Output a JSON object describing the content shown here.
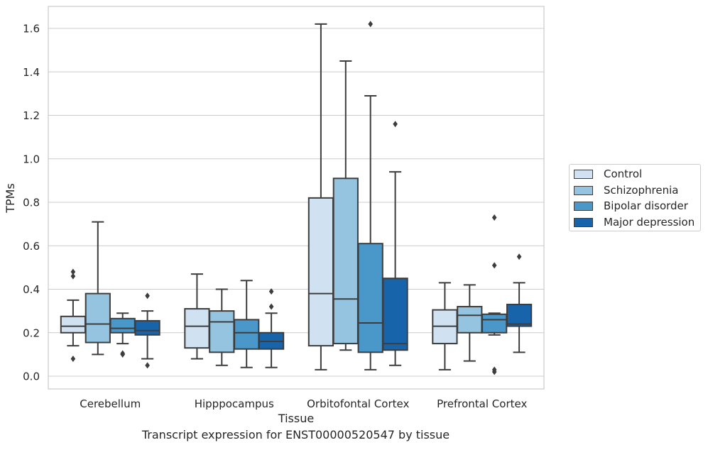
{
  "caption": "Transcript expression for ENST00000520547 by tissue",
  "chart_data": {
    "type": "box",
    "xlabel": "Tissue",
    "ylabel": "TPMs",
    "ylim": [
      -0.06,
      1.7
    ],
    "yticks": [
      0.0,
      0.2,
      0.4,
      0.6,
      0.8,
      1.0,
      1.2,
      1.4,
      1.6
    ],
    "ytick_labels": [
      "0.0",
      "0.2",
      "0.4",
      "0.6",
      "0.8",
      "1.0",
      "1.2",
      "1.4",
      "1.6"
    ],
    "grid": true,
    "legend_position": "right",
    "categories": [
      "Cerebellum",
      "Hipppocampus",
      "Orbitofontal Cortex",
      "Prefrontal Cortex"
    ],
    "series": [
      {
        "name": "Control",
        "color": "#d0e1f2",
        "boxes": [
          {
            "whislo": 0.14,
            "q1": 0.2,
            "med": 0.23,
            "q3": 0.275,
            "whishi": 0.35,
            "fliers": [
              0.08,
              0.46,
              0.48
            ]
          },
          {
            "whislo": 0.08,
            "q1": 0.13,
            "med": 0.23,
            "q3": 0.31,
            "whishi": 0.47,
            "fliers": []
          },
          {
            "whislo": 0.03,
            "q1": 0.14,
            "med": 0.38,
            "q3": 0.82,
            "whishi": 1.62,
            "fliers": []
          },
          {
            "whislo": 0.03,
            "q1": 0.15,
            "med": 0.23,
            "q3": 0.305,
            "whishi": 0.43,
            "fliers": []
          }
        ]
      },
      {
        "name": "Schizophrenia",
        "color": "#94c4df",
        "boxes": [
          {
            "whislo": 0.1,
            "q1": 0.155,
            "med": 0.24,
            "q3": 0.38,
            "whishi": 0.71,
            "fliers": []
          },
          {
            "whislo": 0.05,
            "q1": 0.11,
            "med": 0.25,
            "q3": 0.3,
            "whishi": 0.4,
            "fliers": []
          },
          {
            "whislo": 0.12,
            "q1": 0.15,
            "med": 0.355,
            "q3": 0.91,
            "whishi": 1.45,
            "fliers": []
          },
          {
            "whislo": 0.07,
            "q1": 0.2,
            "med": 0.28,
            "q3": 0.32,
            "whishi": 0.42,
            "fliers": []
          }
        ]
      },
      {
        "name": "Bipolar disorder",
        "color": "#4a98c9",
        "boxes": [
          {
            "whislo": 0.15,
            "q1": 0.2,
            "med": 0.22,
            "q3": 0.265,
            "whishi": 0.29,
            "fliers": [
              0.1,
              0.105
            ]
          },
          {
            "whislo": 0.04,
            "q1": 0.125,
            "med": 0.2,
            "q3": 0.26,
            "whishi": 0.44,
            "fliers": []
          },
          {
            "whislo": 0.03,
            "q1": 0.11,
            "med": 0.245,
            "q3": 0.61,
            "whishi": 1.29,
            "fliers": [
              1.62
            ]
          },
          {
            "whislo": 0.19,
            "q1": 0.2,
            "med": 0.26,
            "q3": 0.285,
            "whishi": 0.29,
            "fliers": [
              0.02,
              0.03,
              0.51,
              0.73
            ]
          }
        ]
      },
      {
        "name": "Major depression",
        "color": "#1764ab",
        "boxes": [
          {
            "whislo": 0.08,
            "q1": 0.19,
            "med": 0.21,
            "q3": 0.255,
            "whishi": 0.3,
            "fliers": [
              0.05,
              0.37
            ]
          },
          {
            "whislo": 0.04,
            "q1": 0.125,
            "med": 0.16,
            "q3": 0.2,
            "whishi": 0.29,
            "fliers": [
              0.32,
              0.39
            ]
          },
          {
            "whislo": 0.05,
            "q1": 0.12,
            "med": 0.15,
            "q3": 0.45,
            "whishi": 0.94,
            "fliers": [
              1.16
            ]
          },
          {
            "whislo": 0.11,
            "q1": 0.23,
            "med": 0.24,
            "q3": 0.33,
            "whishi": 0.43,
            "fliers": [
              0.55
            ]
          }
        ]
      }
    ]
  }
}
